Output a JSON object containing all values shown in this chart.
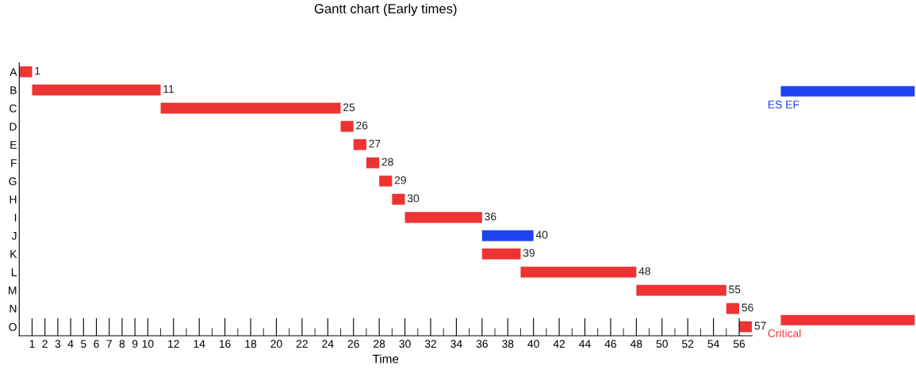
{
  "chart_data": {
    "type": "bar",
    "orientation": "horizontal",
    "title": "Gantt chart (Early times)",
    "xlabel": "Time",
    "categories": [
      "A",
      "B",
      "C",
      "D",
      "E",
      "F",
      "G",
      "H",
      "I",
      "J",
      "K",
      "L",
      "M",
      "N",
      "O"
    ],
    "series": [
      {
        "name": "Critical",
        "color": "#ee3333",
        "base": [
          0,
          1,
          11,
          25,
          26,
          27,
          28,
          29,
          30,
          null,
          36,
          39,
          48,
          55,
          56
        ],
        "values": [
          1,
          10,
          14,
          1,
          1,
          1,
          1,
          1,
          6,
          null,
          3,
          9,
          7,
          1,
          1
        ],
        "value_labels": [
          "1",
          "11",
          "25",
          "26",
          "27",
          "28",
          "29",
          "30",
          "36",
          null,
          "39",
          "48",
          "55",
          "56",
          "57"
        ]
      },
      {
        "name": "ES EF",
        "color": "#1f44ee",
        "base": [
          null,
          null,
          null,
          null,
          null,
          null,
          null,
          null,
          null,
          36,
          null,
          null,
          null,
          null,
          null
        ],
        "values": [
          null,
          null,
          null,
          null,
          null,
          null,
          null,
          null,
          null,
          4,
          null,
          null,
          null,
          null,
          null
        ],
        "value_labels": [
          null,
          null,
          null,
          null,
          null,
          null,
          null,
          null,
          null,
          "40",
          null,
          null,
          null,
          null,
          null
        ]
      }
    ],
    "xlim": [
      0,
      57
    ],
    "xticks": [
      1,
      2,
      3,
      4,
      5,
      6,
      7,
      8,
      9,
      10,
      {
        "value": 11,
        "label": null
      },
      12,
      {
        "value": 13,
        "label": null
      },
      14,
      {
        "value": 15,
        "label": null
      },
      16,
      {
        "value": 17,
        "label": null
      },
      18,
      {
        "value": 19,
        "label": null
      },
      20,
      {
        "value": 21,
        "label": null
      },
      22,
      {
        "value": 23,
        "label": null
      },
      24,
      {
        "value": 25,
        "label": null
      },
      26,
      {
        "value": 27,
        "label": null
      },
      28,
      {
        "value": 29,
        "label": null
      },
      30,
      {
        "value": 31,
        "label": null
      },
      32,
      {
        "value": 33,
        "label": null
      },
      34,
      {
        "value": 35,
        "label": null
      },
      36,
      {
        "value": 37,
        "label": null
      },
      38,
      {
        "value": 39,
        "label": null
      },
      40,
      {
        "value": 41,
        "label": null
      },
      42,
      {
        "value": 43,
        "label": null
      },
      44,
      {
        "value": 45,
        "label": null
      },
      46,
      {
        "value": 47,
        "label": null
      },
      48,
      {
        "value": 49,
        "label": null
      },
      50,
      {
        "value": 51,
        "label": null
      },
      52,
      {
        "value": 53,
        "label": null
      },
      54,
      {
        "value": 55,
        "label": null
      },
      56
    ],
    "grid": false,
    "legend": "right"
  }
}
